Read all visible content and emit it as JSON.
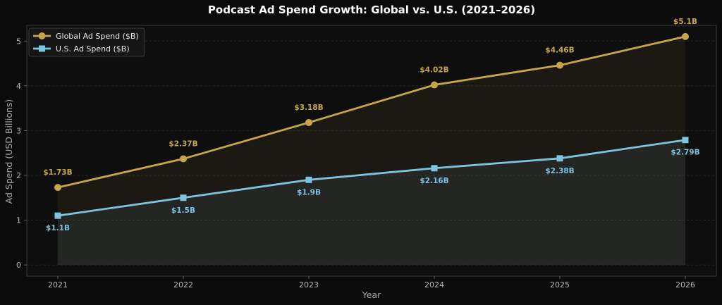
{
  "chart_data": {
    "type": "line",
    "title": "Podcast Ad Spend Growth: Global vs. U.S. (2021–2026)",
    "xlabel": "Year",
    "ylabel": "Ad Spend (USD Billions)",
    "categories": [
      "2021",
      "2022",
      "2023",
      "2024",
      "2025",
      "2026"
    ],
    "ylim": [
      -0.25,
      5.35
    ],
    "yticks": [
      0,
      1,
      2,
      3,
      4,
      5
    ],
    "grid": true,
    "legend_position": "top-left",
    "series": [
      {
        "name": "Global Ad Spend ($B)",
        "values": [
          1.73,
          2.37,
          3.18,
          4.02,
          4.46,
          5.1
        ],
        "labels": [
          "$1.73B",
          "$2.37B",
          "$3.18B",
          "$4.02B",
          "$4.46B",
          "$5.1B"
        ],
        "color": "#c9a54a",
        "marker": "circle",
        "label_position": "above"
      },
      {
        "name": "U.S. Ad Spend ($B)",
        "values": [
          1.1,
          1.5,
          1.9,
          2.16,
          2.38,
          2.79
        ],
        "labels": [
          "$1.1B",
          "$1.5B",
          "$1.9B",
          "$2.16B",
          "$2.38B",
          "$2.79B"
        ],
        "color": "#7ec3e0",
        "marker": "square",
        "label_position": "below"
      }
    ]
  },
  "colors": {
    "background": "#0b0b0b",
    "plot_background": "#0e0e0e",
    "axis_spine": "#3a3a3a",
    "grid": "#2c2c2c"
  }
}
